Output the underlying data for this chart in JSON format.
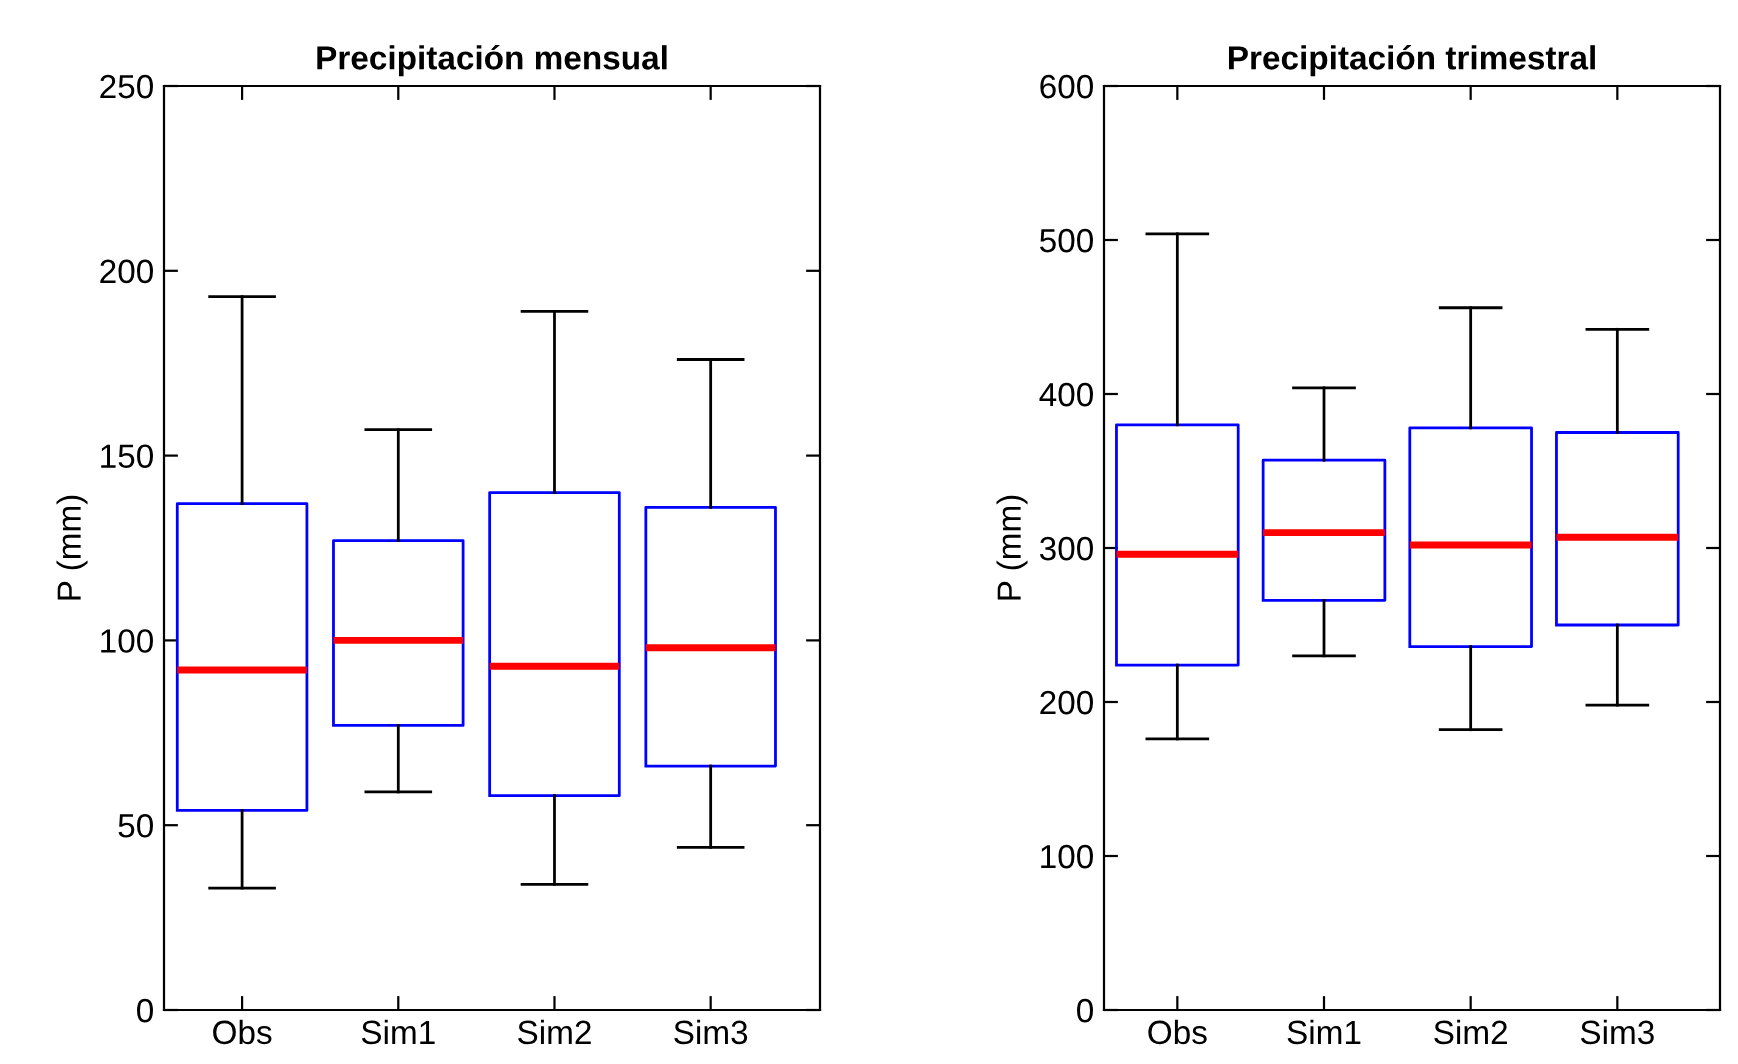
{
  "chart_data": [
    {
      "type": "box",
      "title": "Precipitación mensual",
      "ylabel": "P (mm)",
      "categories": [
        "Obs",
        "Sim1",
        "Sim2",
        "Sim3"
      ],
      "ylim": [
        0,
        250
      ],
      "yticks": [
        0,
        50,
        100,
        150,
        200,
        250
      ],
      "grid": false,
      "series": [
        {
          "color": "#0000ff",
          "boxes": [
            {
              "low": 33,
              "q1": 54,
              "median": 92,
              "q3": 137,
              "high": 193
            },
            {
              "low": 59,
              "q1": 77,
              "median": 100,
              "q3": 127,
              "high": 157
            },
            {
              "low": 34,
              "q1": 58,
              "median": 93,
              "q3": 140,
              "high": 189
            },
            {
              "low": 44,
              "q1": 66,
              "median": 98,
              "q3": 136,
              "high": 176
            }
          ]
        }
      ]
    },
    {
      "type": "box",
      "title": "Precipitación trimestral",
      "ylabel": "P (mm)",
      "categories": [
        "Obs",
        "Sim1",
        "Sim2",
        "Sim3"
      ],
      "ylim": [
        0,
        600
      ],
      "yticks": [
        0,
        100,
        200,
        300,
        400,
        500,
        600
      ],
      "grid": false,
      "series": [
        {
          "color": "#0000ff",
          "boxes": [
            {
              "low": 176,
              "q1": 224,
              "median": 296,
              "q3": 380,
              "high": 504
            },
            {
              "low": 230,
              "q1": 266,
              "median": 310,
              "q3": 357,
              "high": 404
            },
            {
              "low": 182,
              "q1": 236,
              "median": 302,
              "q3": 378,
              "high": 456
            },
            {
              "low": 198,
              "q1": 250,
              "median": 307,
              "q3": 375,
              "high": 442
            }
          ]
        }
      ]
    }
  ]
}
